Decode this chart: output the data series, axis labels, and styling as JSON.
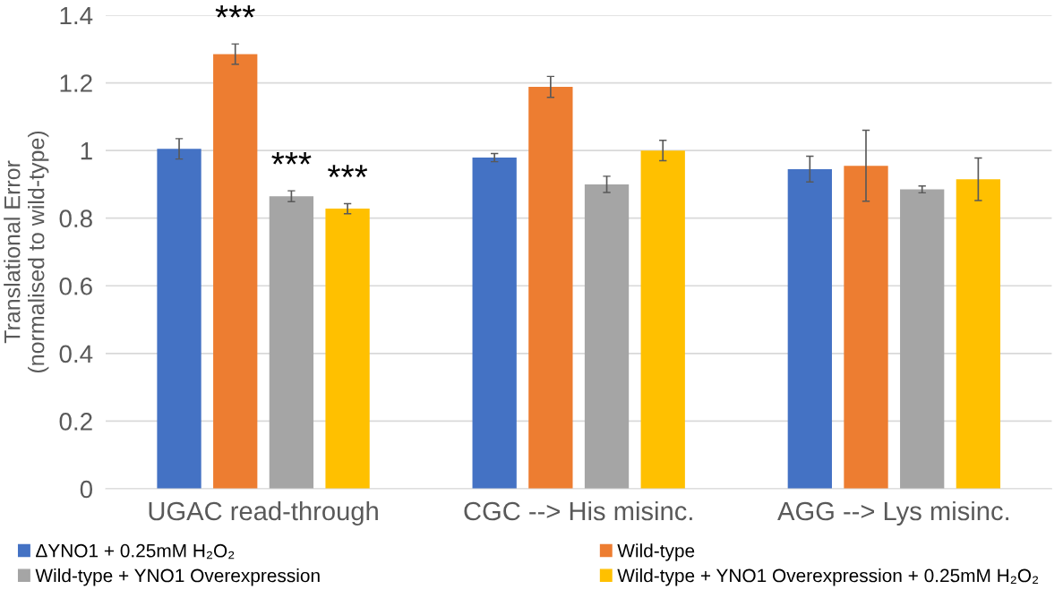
{
  "chart_data": {
    "type": "bar",
    "ylabel": "Translational Error\n(normalised to wild-type)",
    "categories": [
      "UGAC read-through",
      "CGC --> His misinc.",
      "AGG --> Lys misinc."
    ],
    "series": [
      {
        "name": "ΔYNO1 + 0.25mM H₂O₂",
        "color": "#4472c4",
        "values": [
          1.005,
          0.979,
          0.945
        ],
        "errors": [
          0.03,
          0.012,
          0.038
        ]
      },
      {
        "name": "Wild-type",
        "color": "#ed7d31",
        "values": [
          1.285,
          1.188,
          0.955
        ],
        "errors": [
          0.03,
          0.031,
          0.105
        ]
      },
      {
        "name": "Wild-type + YNO1 Overexpression",
        "color": "#a5a5a5",
        "values": [
          0.865,
          0.9,
          0.885
        ],
        "errors": [
          0.016,
          0.024,
          0.01
        ]
      },
      {
        "name": "Wild-type + YNO1 Overexpression + 0.25mM H₂O₂",
        "color": "#ffc000",
        "values": [
          0.828,
          1.0,
          0.915
        ],
        "errors": [
          0.015,
          0.03,
          0.063
        ]
      }
    ],
    "annotations": [
      "***",
      "***",
      "***"
    ],
    "ylim": [
      0,
      1.4
    ],
    "yticks": [
      0,
      0.2,
      0.4,
      0.6,
      0.8,
      1,
      1.2,
      1.4
    ],
    "grid": "y",
    "legend": "bottom"
  }
}
